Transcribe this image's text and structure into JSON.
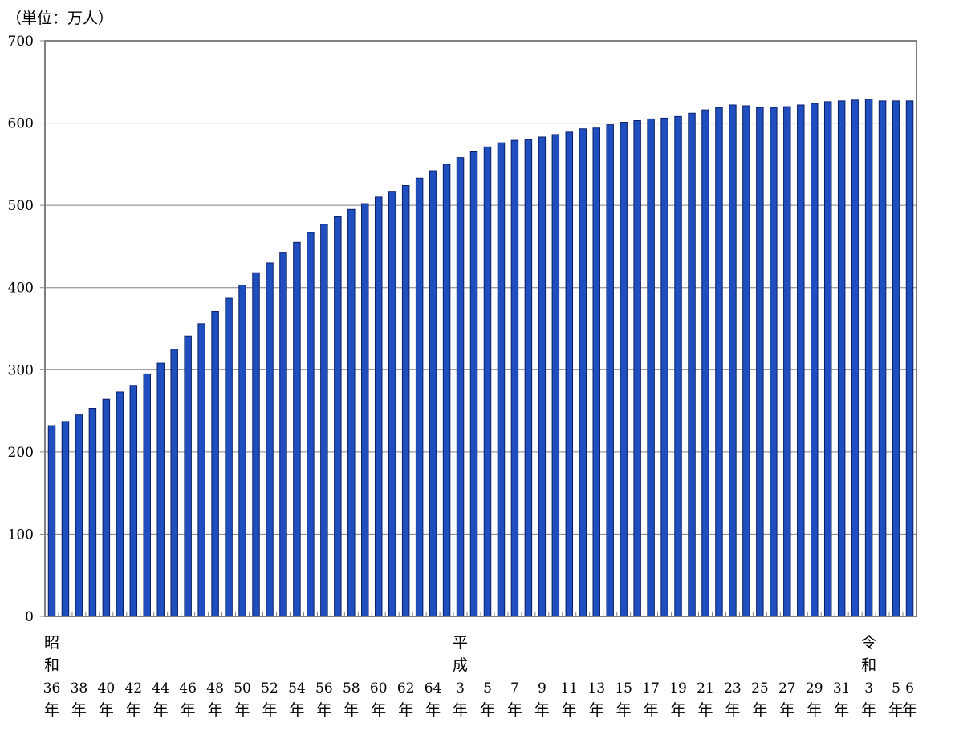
{
  "chart_data": {
    "type": "bar",
    "unit_label": "（単位：万人）",
    "ylim": [
      0,
      700
    ],
    "yticks": [
      0,
      100,
      200,
      300,
      400,
      500,
      600,
      700
    ],
    "grid": true,
    "legend": "none",
    "bar_color": "#1f4fbf",
    "bar_edge_color": "#0a1f66",
    "era_labels": [
      {
        "text": "昭",
        "at_index": 0,
        "row": 1
      },
      {
        "text": "和",
        "at_index": 0,
        "row": 2
      },
      {
        "text": "平",
        "at_index": 30,
        "row": 1
      },
      {
        "text": "成",
        "at_index": 30,
        "row": 2
      },
      {
        "text": "令",
        "at_index": 60,
        "row": 1
      },
      {
        "text": "和",
        "at_index": 60,
        "row": 2
      }
    ],
    "tick_labels": [
      {
        "num": "36",
        "nen": "年",
        "at_index": 0
      },
      {
        "num": "38",
        "nen": "年",
        "at_index": 2
      },
      {
        "num": "40",
        "nen": "年",
        "at_index": 4
      },
      {
        "num": "42",
        "nen": "年",
        "at_index": 6
      },
      {
        "num": "44",
        "nen": "年",
        "at_index": 8
      },
      {
        "num": "46",
        "nen": "年",
        "at_index": 10
      },
      {
        "num": "48",
        "nen": "年",
        "at_index": 12
      },
      {
        "num": "50",
        "nen": "年",
        "at_index": 14
      },
      {
        "num": "52",
        "nen": "年",
        "at_index": 16
      },
      {
        "num": "54",
        "nen": "年",
        "at_index": 18
      },
      {
        "num": "56",
        "nen": "年",
        "at_index": 20
      },
      {
        "num": "58",
        "nen": "年",
        "at_index": 22
      },
      {
        "num": "60",
        "nen": "年",
        "at_index": 24
      },
      {
        "num": "62",
        "nen": "年",
        "at_index": 26
      },
      {
        "num": "64",
        "nen": "年",
        "at_index": 28
      },
      {
        "num": "3",
        "nen": "年",
        "at_index": 30
      },
      {
        "num": "5",
        "nen": "年",
        "at_index": 32
      },
      {
        "num": "7",
        "nen": "年",
        "at_index": 34
      },
      {
        "num": "9",
        "nen": "年",
        "at_index": 36
      },
      {
        "num": "11",
        "nen": "年",
        "at_index": 38
      },
      {
        "num": "13",
        "nen": "年",
        "at_index": 40
      },
      {
        "num": "15",
        "nen": "年",
        "at_index": 42
      },
      {
        "num": "17",
        "nen": "年",
        "at_index": 44
      },
      {
        "num": "19",
        "nen": "年",
        "at_index": 46
      },
      {
        "num": "21",
        "nen": "年",
        "at_index": 48
      },
      {
        "num": "23",
        "nen": "年",
        "at_index": 50
      },
      {
        "num": "25",
        "nen": "年",
        "at_index": 52
      },
      {
        "num": "27",
        "nen": "年",
        "at_index": 54
      },
      {
        "num": "29",
        "nen": "年",
        "at_index": 56
      },
      {
        "num": "31",
        "nen": "年",
        "at_index": 58
      },
      {
        "num": "3",
        "nen": "年",
        "at_index": 60
      },
      {
        "num": "5",
        "nen": "年",
        "at_index": 62
      },
      {
        "num": "6",
        "nen": "年",
        "at_index": 63
      }
    ],
    "values": [
      232,
      237,
      245,
      253,
      264,
      273,
      281,
      295,
      308,
      325,
      341,
      356,
      371,
      387,
      403,
      418,
      430,
      442,
      455,
      467,
      477,
      486,
      495,
      502,
      510,
      517,
      524,
      533,
      542,
      550,
      558,
      565,
      571,
      576,
      579,
      580,
      583,
      586,
      589,
      593,
      594,
      598,
      601,
      603,
      605,
      606,
      608,
      612,
      616,
      619,
      622,
      621,
      619,
      619,
      620,
      622,
      624,
      626,
      627,
      628,
      629,
      627,
      627,
      627
    ]
  }
}
